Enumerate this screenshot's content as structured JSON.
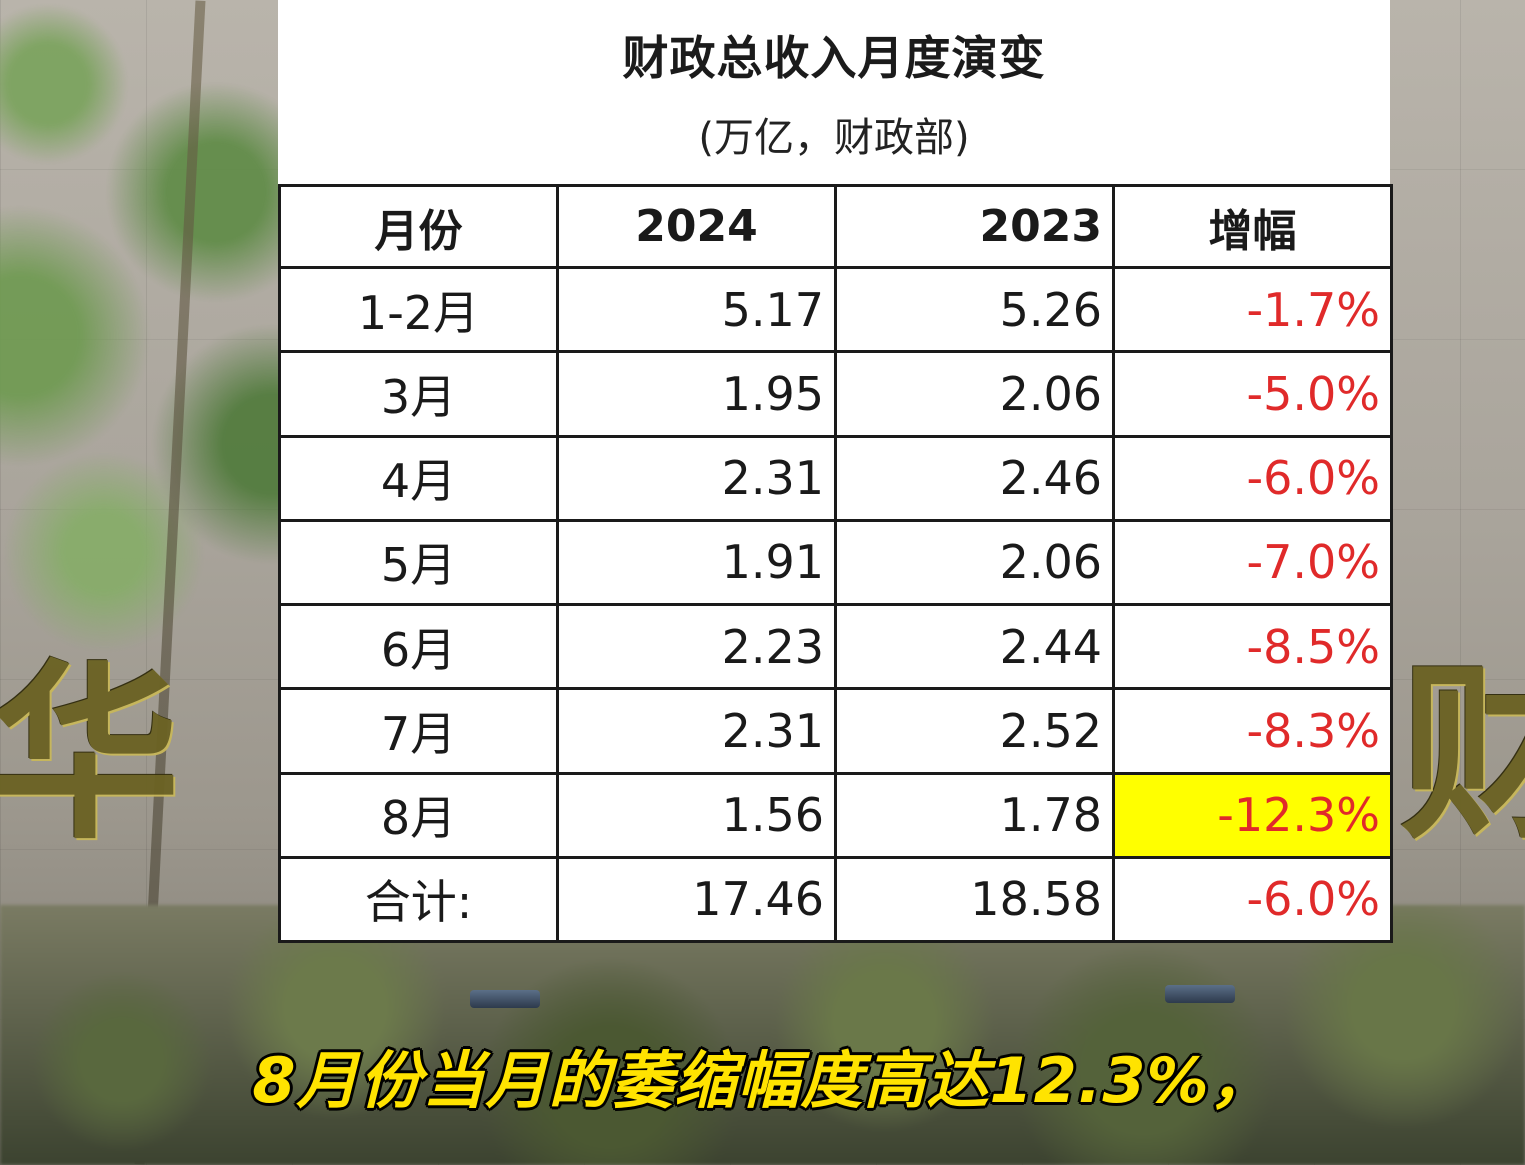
{
  "chart_data": {
    "type": "table",
    "title": "财政总收入月度演变",
    "subtitle": "(万亿，财政部)",
    "columns": [
      "月份",
      "2024",
      "2023",
      "增幅"
    ],
    "rows": [
      {
        "month": "1-2月",
        "y2024": "5.17",
        "y2023": "5.26",
        "change": "-1.7%"
      },
      {
        "month": "3月",
        "y2024": "1.95",
        "y2023": "2.06",
        "change": "-5.0%"
      },
      {
        "month": "4月",
        "y2024": "2.31",
        "y2023": "2.46",
        "change": "-6.0%"
      },
      {
        "month": "5月",
        "y2024": "1.91",
        "y2023": "2.06",
        "change": "-7.0%"
      },
      {
        "month": "6月",
        "y2024": "2.23",
        "y2023": "2.44",
        "change": "-8.5%"
      },
      {
        "month": "7月",
        "y2024": "2.31",
        "y2023": "2.52",
        "change": "-8.3%"
      },
      {
        "month": "8月",
        "y2024": "1.56",
        "y2023": "1.78",
        "change": "-12.3%"
      },
      {
        "month": "合计:",
        "y2024": "17.46",
        "y2023": "18.58",
        "change": "-6.0%"
      }
    ],
    "highlighted_cell": {
      "row": 6,
      "column": "change",
      "color": "#ffff00"
    },
    "change_color": "#e02a2a"
  },
  "caption": "8月份当月的萎缩幅度高达12.3%，"
}
